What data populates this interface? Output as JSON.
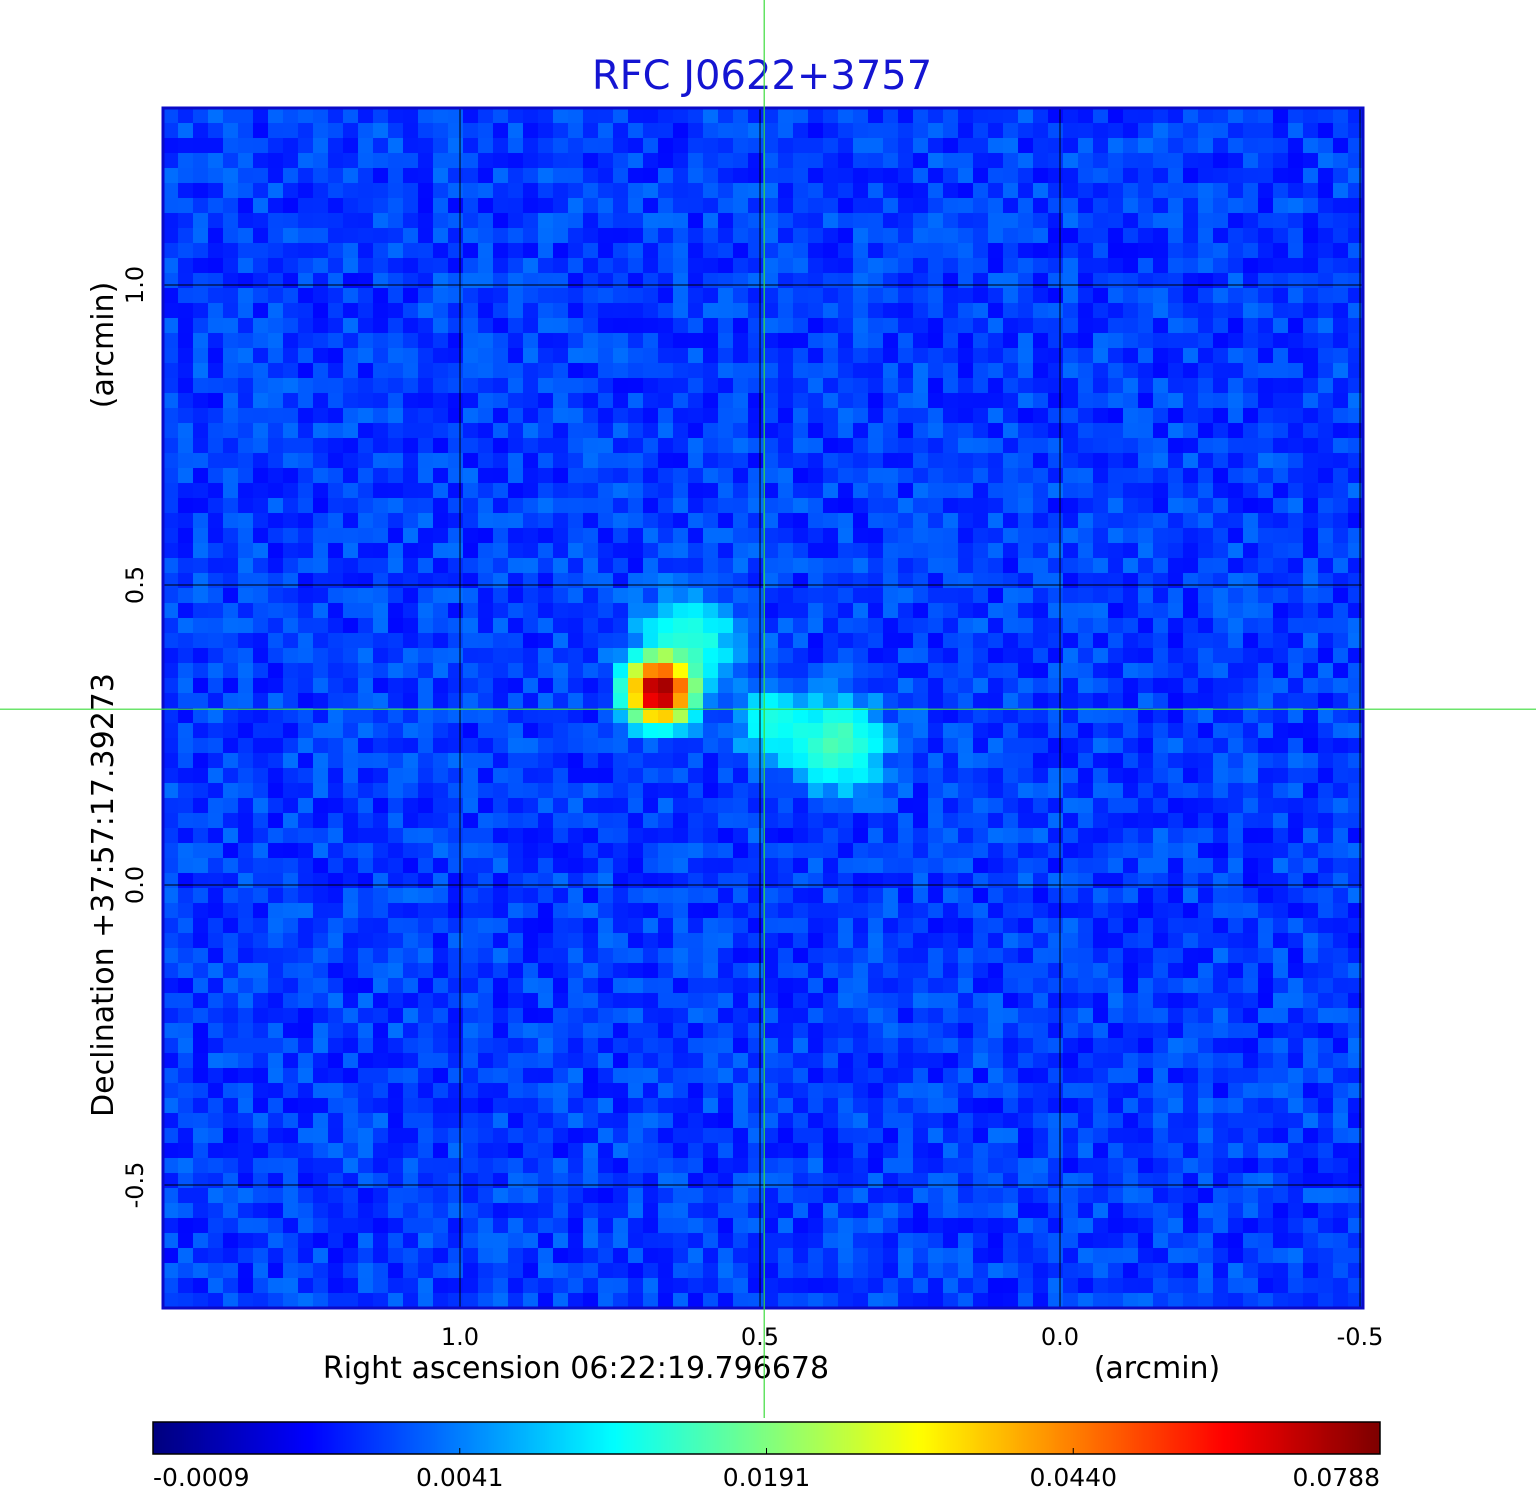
{
  "chart_data": {
    "type": "heatmap",
    "title": "RFC J0622+3757",
    "xlabel": "Right ascension  06:22:19.796678",
    "xlabel_unit": "(arcmin)",
    "ylabel": "Declination  +37:57:17.39273",
    "ylabel_unit": "(arcmin)",
    "x_ticks": [
      {
        "label": "1.0",
        "value": 1.0
      },
      {
        "label": "0.5",
        "value": 0.5
      },
      {
        "label": "0.0",
        "value": 0.0
      },
      {
        "label": "-0.5",
        "value": -0.5
      }
    ],
    "y_ticks": [
      {
        "label": "1.0",
        "value": 1.0
      },
      {
        "label": "0.5",
        "value": 0.5
      },
      {
        "label": "0.0",
        "value": 0.0
      },
      {
        "label": "-0.5",
        "value": -0.5
      }
    ],
    "xlim": [
      1.495,
      -0.505
    ],
    "ylim": [
      -0.705,
      1.295
    ],
    "x_reversed": true,
    "grid": true,
    "crosshair": {
      "x": 0.493,
      "y": 0.293
    },
    "sources": [
      {
        "x": 0.668,
        "y": 0.323,
        "peak": 0.0788,
        "sigma": 0.03
      },
      {
        "x": 0.62,
        "y": 0.4,
        "peak": 0.0085,
        "sigma": 0.05
      },
      {
        "x": 0.48,
        "y": 0.27,
        "peak": 0.0075,
        "sigma": 0.035
      },
      {
        "x": 0.37,
        "y": 0.235,
        "peak": 0.011,
        "sigma": 0.045
      }
    ],
    "noise_level": 0.0012,
    "colorbar": {
      "colormap": "jet",
      "tick_labels": [
        "-0.0009",
        "0.0041",
        "0.0191",
        "0.0440",
        "0.0788"
      ],
      "tick_values": [
        -0.0009,
        0.0041,
        0.0191,
        0.044,
        0.0788
      ]
    },
    "colors": {
      "title": "#1414d2",
      "grid": "#000000",
      "crosshair": "#3cdc3c",
      "background_field": "#1438f0"
    }
  }
}
